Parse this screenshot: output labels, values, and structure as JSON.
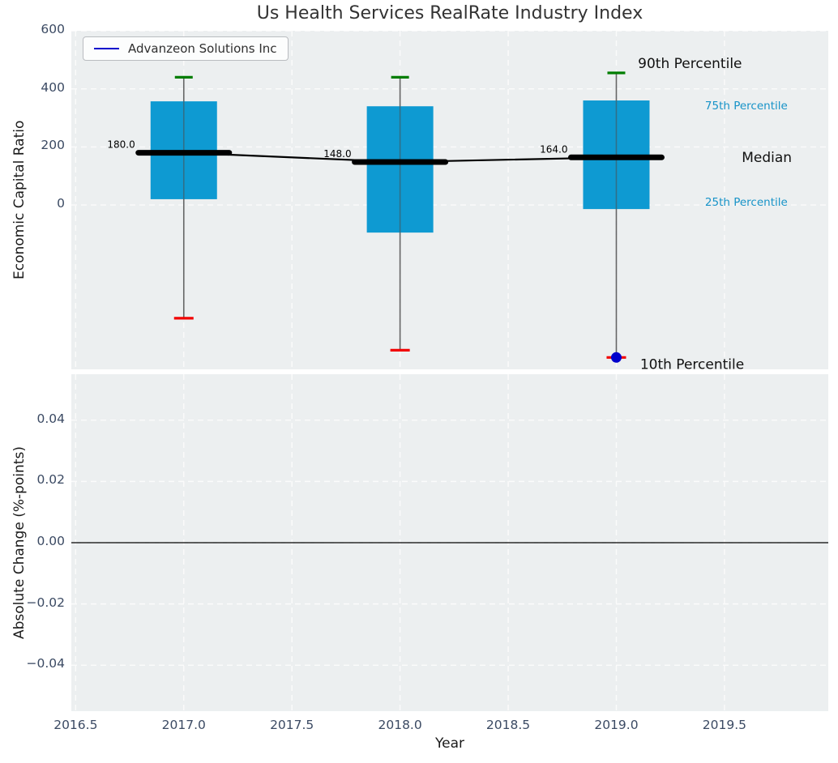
{
  "title": "Us Health Services RealRate Industry Index",
  "colors": {
    "box": "#0e9ad2",
    "whisker": "#4d4d4d",
    "p90_cap": "#007d00",
    "p10_cap": "#f20000",
    "median": "#000000",
    "company_line": "#0000cc",
    "grid": "#fbfbfb",
    "axes_bg": "#eceff0",
    "tick_text": "#3b4a63",
    "percentile_text": "#1793c8"
  },
  "legend": {
    "label": "Advanzeon Solutions Inc"
  },
  "chart_data": [
    {
      "type": "boxplot",
      "ylabel": "Economic Capital Ratio",
      "legend": {
        "label": "Advanzeon Solutions Inc",
        "line_color": "#0000cc"
      },
      "xlim": [
        2016.48,
        2019.98
      ],
      "ylim": [
        -566,
        600
      ],
      "grid": true,
      "xticks": [
        {
          "v": 2016.5,
          "label": "2016.5"
        },
        {
          "v": 2017.0,
          "label": "2017.0"
        },
        {
          "v": 2017.5,
          "label": "2017.5"
        },
        {
          "v": 2018.0,
          "label": "2018.0"
        },
        {
          "v": 2018.5,
          "label": "2018.5"
        },
        {
          "v": 2019.0,
          "label": "2019.0"
        },
        {
          "v": 2019.5,
          "label": "2019.5"
        }
      ],
      "yticks": [
        {
          "v": 0,
          "label": "0"
        },
        {
          "v": 200,
          "label": "200"
        },
        {
          "v": 400,
          "label": "400"
        },
        {
          "v": 600,
          "label": "600"
        }
      ],
      "boxes": [
        {
          "year": 2017,
          "p90": 440,
          "p75": 357,
          "median": 180,
          "p25": 20,
          "p10": -390,
          "median_label": "180.0"
        },
        {
          "year": 2018,
          "p90": 440,
          "p75": 340,
          "median": 148,
          "p25": -95,
          "p10": -500,
          "median_label": "148.0"
        },
        {
          "year": 2019,
          "p90": 455,
          "p75": 360,
          "median": 164,
          "p25": -14,
          "p10": -525,
          "median_label": "164.0"
        }
      ],
      "median_trend": [
        [
          2017,
          180
        ],
        [
          2018,
          148
        ],
        [
          2019,
          164
        ]
      ],
      "company_point": {
        "year": 2019,
        "value": -525
      },
      "annotations": [
        {
          "text": "90th Percentile",
          "year": 2019.1,
          "value": 485,
          "color": "#111111",
          "size": 17
        },
        {
          "text": "75th Percentile",
          "year": 2019.41,
          "value": 340,
          "color": "#1793c8",
          "size": 13.5
        },
        {
          "text": "Median",
          "year": 2019.58,
          "value": 162,
          "color": "#111111",
          "size": 17
        },
        {
          "text": "25th Percentile",
          "year": 2019.41,
          "value": 8,
          "color": "#1793c8",
          "size": 13.5
        },
        {
          "text": "10th Percentile",
          "year": 2019.11,
          "value": -550,
          "color": "#111111",
          "size": 17
        }
      ]
    },
    {
      "type": "line",
      "ylabel": "Absolute Change (%-points)",
      "xlabel": "Year",
      "xlim": [
        2016.48,
        2019.98
      ],
      "ylim": [
        -0.055,
        0.055
      ],
      "grid": true,
      "zero_line": true,
      "series": [],
      "xticks": [
        {
          "v": 2016.5,
          "label": "2016.5"
        },
        {
          "v": 2017.0,
          "label": "2017.0"
        },
        {
          "v": 2017.5,
          "label": "2017.5"
        },
        {
          "v": 2018.0,
          "label": "2018.0"
        },
        {
          "v": 2018.5,
          "label": "2018.5"
        },
        {
          "v": 2019.0,
          "label": "2019.0"
        },
        {
          "v": 2019.5,
          "label": "2019.5"
        }
      ],
      "yticks": [
        {
          "v": 0.04,
          "label": "0.04"
        },
        {
          "v": 0.02,
          "label": "0.02"
        },
        {
          "v": 0.0,
          "label": "0.00"
        },
        {
          "v": -0.02,
          "label": "−0.02"
        },
        {
          "v": -0.04,
          "label": "−0.04"
        }
      ]
    }
  ]
}
